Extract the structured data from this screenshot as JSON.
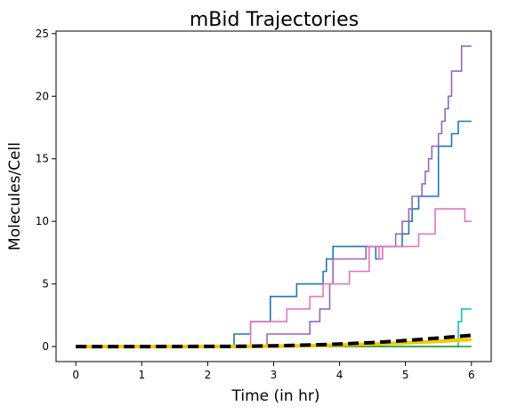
{
  "chart_data": {
    "type": "line",
    "title": "mBid Trajectories",
    "xlabel": "Time (in hr)",
    "ylabel": "Molecules/Cell",
    "xlim": [
      -0.3,
      6.3
    ],
    "ylim": [
      -1.2,
      25.2
    ],
    "xticks": [
      0,
      1,
      2,
      3,
      4,
      5,
      6
    ],
    "yticks": [
      0,
      5,
      10,
      15,
      20,
      25
    ],
    "grid": false,
    "legend": "none",
    "series": [
      {
        "color": "#1f77b4",
        "style": "step",
        "points": [
          [
            0,
            0
          ],
          [
            2.4,
            0
          ],
          [
            2.4,
            1
          ],
          [
            2.65,
            1
          ],
          [
            2.65,
            2
          ],
          [
            2.95,
            2
          ],
          [
            2.95,
            4
          ],
          [
            3.35,
            4
          ],
          [
            3.35,
            5
          ],
          [
            3.75,
            5
          ],
          [
            3.75,
            6
          ],
          [
            3.8,
            6
          ],
          [
            3.8,
            7
          ],
          [
            3.9,
            7
          ],
          [
            3.9,
            8
          ],
          [
            4.55,
            8
          ],
          [
            4.55,
            7
          ],
          [
            4.65,
            7
          ],
          [
            4.65,
            8
          ],
          [
            4.95,
            8
          ],
          [
            4.95,
            9
          ],
          [
            5.05,
            9
          ],
          [
            5.05,
            10
          ],
          [
            5.1,
            10
          ],
          [
            5.1,
            11
          ],
          [
            5.2,
            11
          ],
          [
            5.2,
            12
          ],
          [
            5.5,
            12
          ],
          [
            5.5,
            16
          ],
          [
            5.7,
            16
          ],
          [
            5.7,
            17
          ],
          [
            5.8,
            17
          ],
          [
            5.8,
            18
          ],
          [
            6,
            18
          ]
        ]
      },
      {
        "color": "#9467bd",
        "style": "step",
        "points": [
          [
            0,
            0
          ],
          [
            2.9,
            0
          ],
          [
            2.9,
            1
          ],
          [
            3.55,
            1
          ],
          [
            3.55,
            2
          ],
          [
            3.7,
            2
          ],
          [
            3.7,
            3
          ],
          [
            3.85,
            3
          ],
          [
            3.85,
            5
          ],
          [
            3.9,
            5
          ],
          [
            3.9,
            7
          ],
          [
            4.4,
            7
          ],
          [
            4.4,
            8
          ],
          [
            4.85,
            8
          ],
          [
            4.85,
            9
          ],
          [
            4.95,
            9
          ],
          [
            4.95,
            10
          ],
          [
            5.05,
            10
          ],
          [
            5.05,
            11
          ],
          [
            5.1,
            11
          ],
          [
            5.1,
            12
          ],
          [
            5.25,
            12
          ],
          [
            5.25,
            13
          ],
          [
            5.3,
            13
          ],
          [
            5.3,
            14
          ],
          [
            5.35,
            14
          ],
          [
            5.35,
            15
          ],
          [
            5.4,
            15
          ],
          [
            5.4,
            16
          ],
          [
            5.5,
            16
          ],
          [
            5.5,
            17
          ],
          [
            5.55,
            17
          ],
          [
            5.55,
            18
          ],
          [
            5.6,
            18
          ],
          [
            5.6,
            19
          ],
          [
            5.65,
            19
          ],
          [
            5.65,
            20
          ],
          [
            5.7,
            20
          ],
          [
            5.7,
            22
          ],
          [
            5.85,
            22
          ],
          [
            5.85,
            24
          ],
          [
            6,
            24
          ]
        ]
      },
      {
        "color": "#e377c2",
        "style": "step",
        "points": [
          [
            0,
            0
          ],
          [
            2.65,
            0
          ],
          [
            2.65,
            2
          ],
          [
            3.2,
            2
          ],
          [
            3.2,
            3
          ],
          [
            3.55,
            3
          ],
          [
            3.55,
            4
          ],
          [
            3.75,
            4
          ],
          [
            3.75,
            5
          ],
          [
            4.15,
            5
          ],
          [
            4.15,
            6
          ],
          [
            4.45,
            6
          ],
          [
            4.45,
            8
          ],
          [
            4.6,
            8
          ],
          [
            4.6,
            7
          ],
          [
            4.65,
            7
          ],
          [
            4.65,
            8
          ],
          [
            5.2,
            8
          ],
          [
            5.2,
            9
          ],
          [
            5.45,
            9
          ],
          [
            5.45,
            11
          ],
          [
            5.9,
            11
          ],
          [
            5.9,
            10
          ],
          [
            6,
            10
          ]
        ]
      },
      {
        "color": "#17becf",
        "style": "step",
        "points": [
          [
            0,
            0
          ],
          [
            5.8,
            0
          ],
          [
            5.8,
            2
          ],
          [
            5.85,
            2
          ],
          [
            5.85,
            3
          ],
          [
            6,
            3
          ]
        ]
      },
      {
        "color": "#2ca02c",
        "style": "step",
        "points": [
          [
            0,
            0
          ],
          [
            6,
            0
          ]
        ]
      }
    ],
    "mean_curve": {
      "color": "#000000",
      "points": [
        [
          0,
          0
        ],
        [
          1,
          0
        ],
        [
          2,
          0.01
        ],
        [
          2.5,
          0.02
        ],
        [
          3,
          0.06
        ],
        [
          3.5,
          0.12
        ],
        [
          4,
          0.2
        ],
        [
          4.5,
          0.32
        ],
        [
          5,
          0.48
        ],
        [
          5.5,
          0.68
        ],
        [
          6,
          0.9
        ]
      ]
    },
    "reference_curve": {
      "color": "#f5c800",
      "points": [
        [
          0,
          0
        ],
        [
          1,
          0
        ],
        [
          2,
          0
        ],
        [
          2.5,
          0.01
        ],
        [
          3,
          0.03
        ],
        [
          3.5,
          0.07
        ],
        [
          4,
          0.12
        ],
        [
          4.5,
          0.2
        ],
        [
          5,
          0.3
        ],
        [
          5.5,
          0.42
        ],
        [
          6,
          0.55
        ]
      ]
    }
  }
}
